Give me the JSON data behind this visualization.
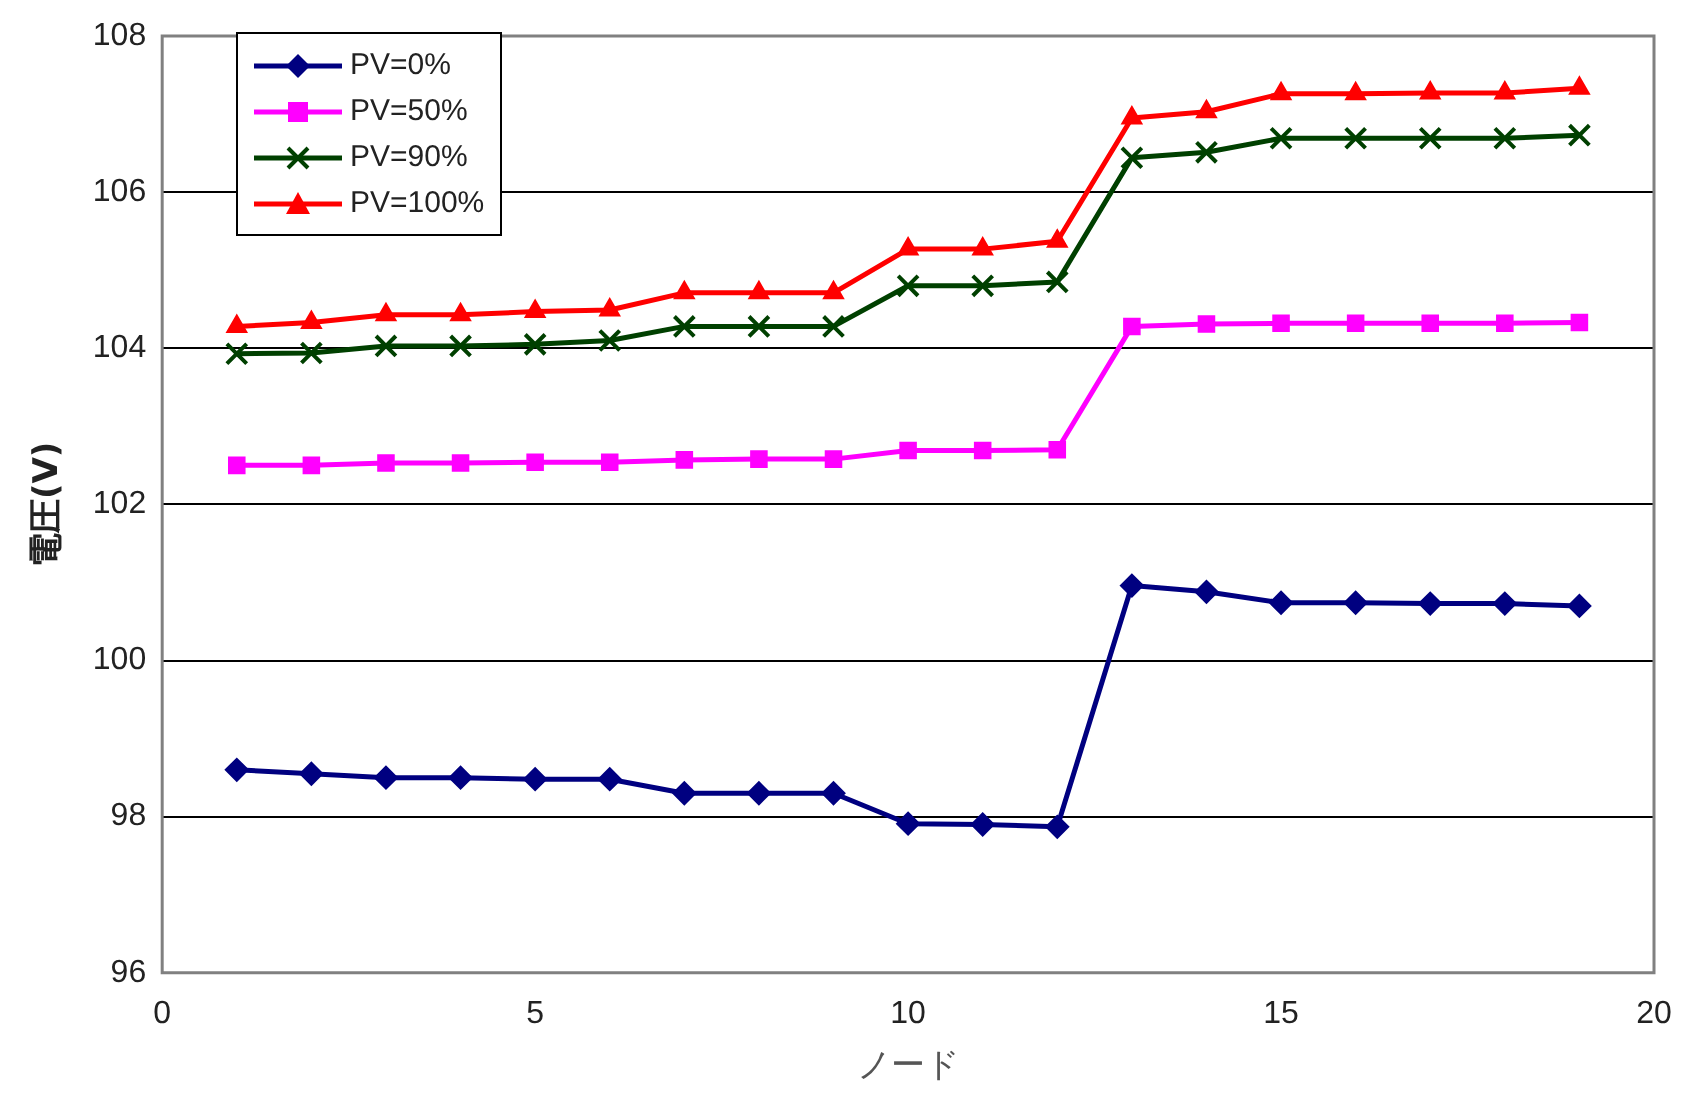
{
  "chart_data": {
    "type": "line",
    "xlabel": "ノード",
    "ylabel": "電圧(V)",
    "x": [
      1,
      2,
      3,
      4,
      5,
      6,
      7,
      8,
      9,
      10,
      11,
      12,
      13,
      14,
      15,
      16,
      17,
      18,
      19
    ],
    "series": [
      {
        "name": "PV=0%",
        "color": "#000080",
        "marker": "diamond",
        "values": [
          98.6,
          98.55,
          98.5,
          98.5,
          98.48,
          98.48,
          98.3,
          98.3,
          98.3,
          97.91,
          97.9,
          97.87,
          100.96,
          100.88,
          100.74,
          100.74,
          100.73,
          100.73,
          100.7
        ]
      },
      {
        "name": "PV=50%",
        "color": "#ff00ff",
        "marker": "square",
        "values": [
          102.5,
          102.5,
          102.53,
          102.53,
          102.54,
          102.54,
          102.57,
          102.58,
          102.58,
          102.69,
          102.69,
          102.7,
          104.28,
          104.31,
          104.32,
          104.32,
          104.32,
          104.32,
          104.33
        ]
      },
      {
        "name": "PV=90%",
        "color": "#004000",
        "marker": "cross",
        "values": [
          103.93,
          103.94,
          104.03,
          104.03,
          104.05,
          104.1,
          104.28,
          104.28,
          104.28,
          104.8,
          104.8,
          104.85,
          106.44,
          106.51,
          106.69,
          106.69,
          106.69,
          106.69,
          106.73
        ]
      },
      {
        "name": "PV=100%",
        "color": "#ff0000",
        "marker": "triangle",
        "values": [
          104.28,
          104.33,
          104.43,
          104.43,
          104.47,
          104.49,
          104.71,
          104.71,
          104.71,
          105.27,
          105.27,
          105.37,
          106.95,
          107.03,
          107.26,
          107.26,
          107.27,
          107.27,
          107.33
        ]
      }
    ],
    "xlim": [
      0,
      20
    ],
    "xticks": [
      0,
      5,
      10,
      15,
      20
    ],
    "ylim": [
      96,
      108
    ],
    "yticks": [
      96,
      98,
      100,
      102,
      104,
      106,
      108
    ],
    "grid": "y",
    "legend": "top left",
    "line_style": "solid"
  }
}
